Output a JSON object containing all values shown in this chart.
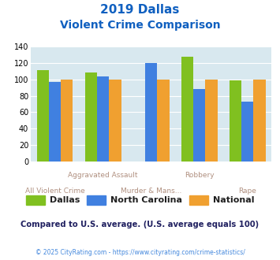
{
  "title_line1": "2019 Dallas",
  "title_line2": "Violent Crime Comparison",
  "categories": [
    "All Violent Crime",
    "Aggravated Assault",
    "Murder & Mans...",
    "Robbery",
    "Rape"
  ],
  "dallas": [
    111,
    109,
    0,
    128,
    99
  ],
  "north_carolina": [
    97,
    104,
    120,
    88,
    73
  ],
  "national": [
    100,
    100,
    100,
    100,
    100
  ],
  "dallas_color": "#80c020",
  "nc_color": "#4080e0",
  "national_color": "#f0a030",
  "bg_color": "#d8e8ef",
  "ylim": [
    0,
    140
  ],
  "yticks": [
    0,
    20,
    40,
    60,
    80,
    100,
    120,
    140
  ],
  "title_color": "#1060c0",
  "xlabel_top_labels": [
    "",
    "Aggravated Assault",
    "",
    "Robbery",
    ""
  ],
  "xlabel_bot_labels": [
    "All Violent Crime",
    "",
    "Murder & Mans...",
    "",
    "Rape"
  ],
  "xlabel_color": "#b09080",
  "comparison_text": "Compared to U.S. average. (U.S. average equals 100)",
  "footer_text": "© 2025 CityRating.com - https://www.cityrating.com/crime-statistics/",
  "footer_color": "#4488dd",
  "comparison_color": "#202060",
  "legend_labels": [
    "Dallas",
    "North Carolina",
    "National"
  ],
  "legend_text_color": "#202020"
}
